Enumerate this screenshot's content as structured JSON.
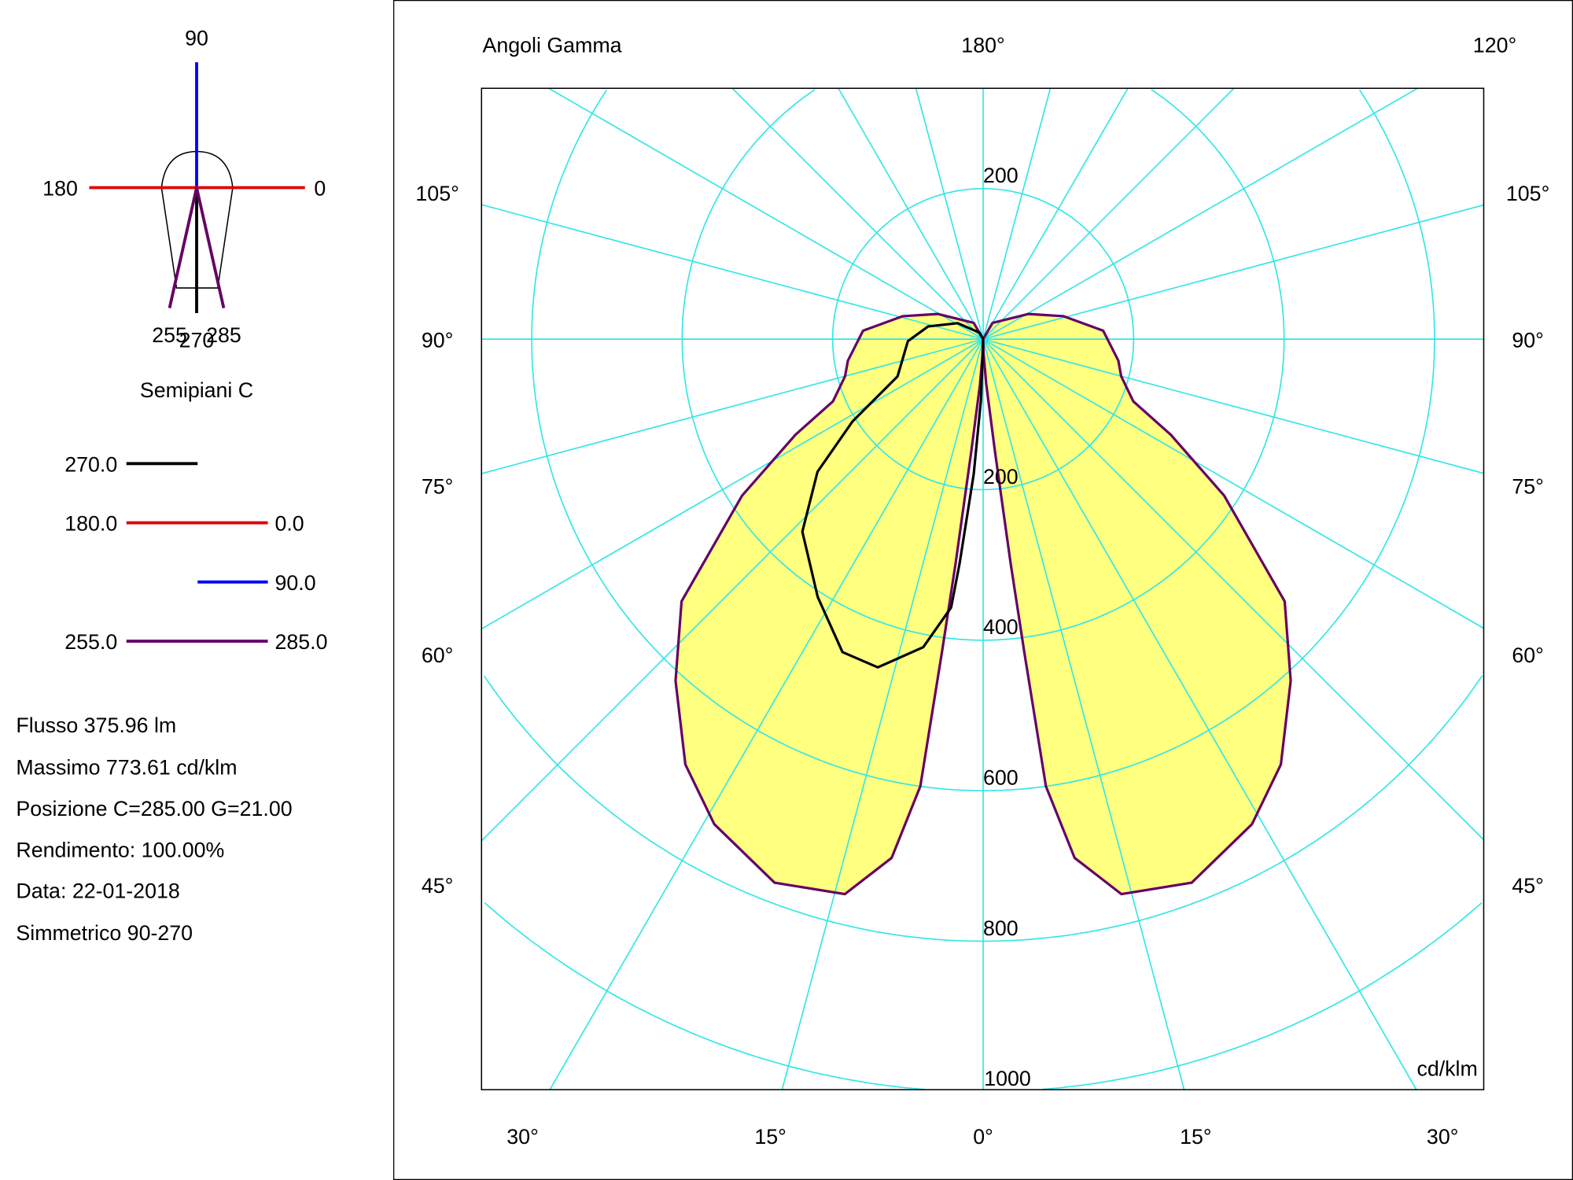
{
  "mini_diagram": {
    "label_90": "90",
    "label_180": "180",
    "label_0": "0",
    "label_255": "255",
    "label_270": "270",
    "label_285": "285",
    "title": "Semipiani C"
  },
  "legend": [
    {
      "left": "270.0",
      "right": "",
      "color": "#000000",
      "span": "left"
    },
    {
      "left": "180.0",
      "right": "0.0",
      "color": "#e00000",
      "span": "full"
    },
    {
      "left": "",
      "right": "90.0",
      "color": "#0000ff",
      "span": "right"
    },
    {
      "left": "255.0",
      "right": "285.0",
      "color": "#660066",
      "span": "full"
    }
  ],
  "info": [
    "Flusso 375.96  lm",
    "Massimo 773.61  cd/klm",
    "Posizione C=285.00 G=21.00",
    "Rendimento: 100.00%",
    "Data: 22-01-2018",
    "Simmetrico 90-270"
  ],
  "chart_data": {
    "type": "polar",
    "title": "Angoli Gamma",
    "unit_label": "cd/klm",
    "top_labels": {
      "left": "Angoli Gamma",
      "center": "180°",
      "right": "120°"
    },
    "side_labels": [
      "105°",
      "90°",
      "75°",
      "60°",
      "45°"
    ],
    "bottom_labels": [
      "30°",
      "15°",
      "0°",
      "15°",
      "30°"
    ],
    "ring_labels": {
      "upper": [
        "200"
      ],
      "lower": [
        "200",
        "400",
        "600",
        "800",
        "1000"
      ]
    },
    "radial_max": 1000,
    "ring_step": 200,
    "angle_step_deg": 15,
    "grid": true,
    "grid_color": "#33e6e6",
    "fill_color": "#ffff80",
    "series": [
      {
        "name": "255.0 / 285.0",
        "color": "#660066",
        "sides": "both",
        "filled": true,
        "gamma": [
          0,
          2,
          4,
          6,
          7,
          7.5,
          8,
          10,
          14,
          21,
          29,
          35,
          42,
          49,
          57,
          63,
          67.5,
          75,
          81,
          94,
          106,
          119,
          150,
          180
        ],
        "values": [
          0,
          20,
          60,
          150,
          300,
          420,
          600,
          700,
          760,
          773.61,
          737,
          690,
          611,
          531,
          382,
          280,
          216,
          190,
          182,
          160,
          111,
          69,
          25,
          0
        ]
      },
      {
        "name": "270.0",
        "color": "#000000",
        "sides": "left",
        "filled": false,
        "gamma": [
          0,
          2,
          4,
          6,
          6.8,
          11,
          17.8,
          24.2,
          32.7,
          43.2,
          51.3,
          57.8,
          66.5,
          88.5,
          103,
          122,
          150,
          180
        ],
        "values": [
          0,
          80,
          180,
          300,
          359,
          417,
          458,
          456,
          407,
          351,
          282,
          205,
          124,
          100,
          75,
          40,
          10,
          0
        ]
      }
    ]
  }
}
